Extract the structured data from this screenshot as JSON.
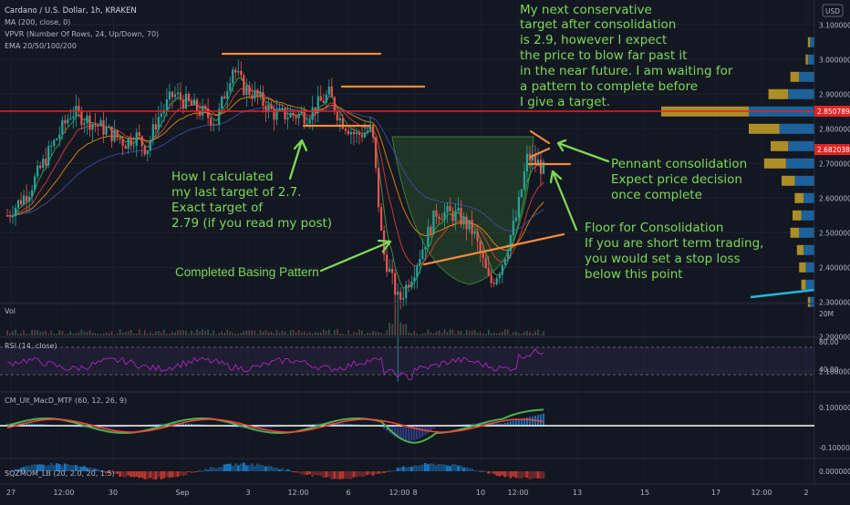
{
  "header": {
    "symbol": "Cardano / U.S. Dollar, 1h, KRAKEN",
    "indicators": [
      "MA (200, close, 0)",
      "VPVR (Number Of Rows, 24, Up/Down, 70)",
      "EMA 20/50/100/200"
    ],
    "currency": "USD"
  },
  "panes": {
    "vol_label": "Vol",
    "vol_tick": "20M",
    "rsi_label": "RSI (14, close)",
    "rsi_ticks": [
      "80.00",
      "40.00"
    ],
    "macd_label": "CM_Ult_MacD_MTF (60, 12, 26, 9)",
    "macd_ticks": [
      "0.100000",
      "-0.100000"
    ],
    "squeeze_label": "SQZMOM_LB (20, 2.0, 20, 1.5)",
    "squeeze_tick": "0.000000"
  },
  "price_axis": {
    "ticks": [
      "3.100000",
      "3.000000",
      "2.900000",
      "2.800000",
      "2.700000",
      "2.600000",
      "2.500000",
      "2.400000",
      "2.300000",
      "2.200000",
      "2.100000"
    ],
    "resistance_label": "2.850789",
    "last_label": "2.682038"
  },
  "time_axis": [
    "27",
    "12:00",
    "30",
    "Sep",
    "3",
    "12:00",
    "6",
    "12:00",
    "8",
    "10",
    "12:00",
    "13",
    "15",
    "17",
    "12:00",
    "2"
  ],
  "annotations": {
    "top_right": [
      "My next conservative",
      "target after consolidation",
      "is 2.9, however I expect",
      "the price to blow far past it",
      "in the near future. I am waiting for",
      "a pattern to complete before",
      "I give a target."
    ],
    "left": [
      "How I calculated",
      "my last target of 2.7.",
      "Exact target of",
      "2.79 (if you read my post)"
    ],
    "pennant": [
      "Pennant consolidation",
      "Expect price decision",
      "once complete"
    ],
    "floor": [
      "Floor for Consolidation",
      "If you are short term trading,",
      "you would set a stop loss",
      "below this point"
    ],
    "basing": "Completed Basing Pattern"
  },
  "colors": {
    "background": "#131722",
    "candle_up": "#26a69a",
    "candle_down": "#ef5350",
    "annotation_text": "#7ed957",
    "horizontal_line": "#f28b3c",
    "resistance": "#e02424",
    "rsi": "#9c27b0",
    "vpvr_up": "#1e6fb0",
    "vpvr_down": "#c9a227"
  },
  "chart_data": {
    "type": "candlestick",
    "title": "Cardano / U.S. Dollar, 1h, KRAKEN",
    "ylim": [
      2.05,
      3.2
    ],
    "ticks_y": [
      3.1,
      3.0,
      2.9,
      2.8,
      2.7,
      2.6,
      2.5,
      2.4,
      2.3,
      2.2,
      2.1
    ],
    "resistance": 2.850789,
    "last_price": 2.682038,
    "price_path": {
      "t": [
        0,
        0.04,
        0.08,
        0.12,
        0.18,
        0.22,
        0.24,
        0.26,
        0.28,
        0.31,
        0.35,
        0.39,
        0.42,
        0.44,
        0.46,
        0.5,
        0.56,
        0.6,
        0.62,
        0.65,
        0.68,
        0.7,
        0.73,
        0.76,
        0.8,
        0.84,
        0.87,
        0.9,
        0.92,
        0.95,
        0.97,
        0.99,
        1.0
      ],
      "price": [
        2.55,
        2.62,
        2.74,
        2.85,
        2.8,
        2.76,
        2.78,
        2.74,
        2.83,
        2.9,
        2.86,
        2.82,
        2.98,
        2.92,
        2.9,
        2.84,
        2.84,
        2.9,
        2.83,
        2.78,
        2.8,
        2.45,
        2.3,
        2.4,
        2.56,
        2.55,
        2.5,
        2.35,
        2.4,
        2.55,
        2.72,
        2.7,
        2.68
      ]
    },
    "vpvr": [
      {
        "price": 3.05,
        "up": 2,
        "down": 1
      },
      {
        "price": 3.0,
        "up": 3,
        "down": 1
      },
      {
        "price": 2.95,
        "up": 7,
        "down": 4
      },
      {
        "price": 2.9,
        "up": 12,
        "down": 9
      },
      {
        "price": 2.85,
        "up": 30,
        "down": 40
      },
      {
        "price": 2.8,
        "up": 16,
        "down": 14
      },
      {
        "price": 2.75,
        "up": 12,
        "down": 8
      },
      {
        "price": 2.7,
        "up": 13,
        "down": 10
      },
      {
        "price": 2.65,
        "up": 9,
        "down": 6
      },
      {
        "price": 2.6,
        "up": 5,
        "down": 4
      },
      {
        "price": 2.55,
        "up": 6,
        "down": 4
      },
      {
        "price": 2.5,
        "up": 7,
        "down": 4
      },
      {
        "price": 2.45,
        "up": 5,
        "down": 3
      },
      {
        "price": 2.4,
        "up": 4,
        "down": 3
      },
      {
        "price": 2.35,
        "up": 4,
        "down": 2
      },
      {
        "price": 2.3,
        "up": 2,
        "down": 1
      }
    ]
  }
}
